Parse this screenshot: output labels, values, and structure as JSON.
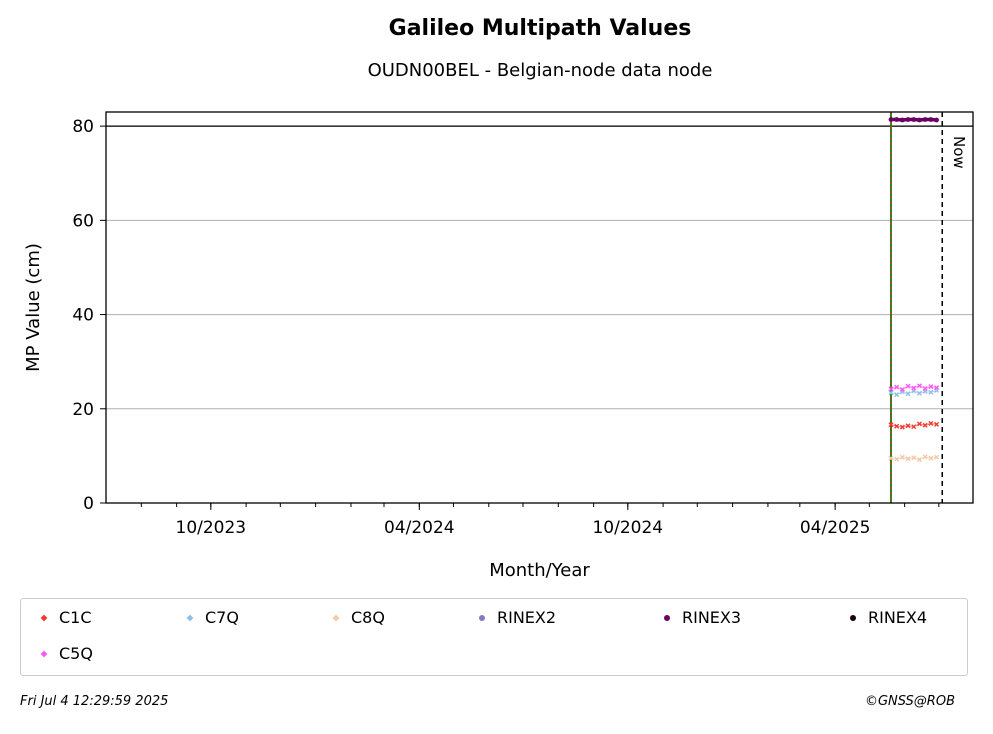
{
  "header": {
    "title": "Galileo Multipath Values",
    "subtitle": "OUDN00BEL - Belgian-node data node"
  },
  "footer": {
    "timestamp": "Fri Jul  4 12:29:59 2025",
    "copyright": "©GNSS@ROB"
  },
  "chart_data": {
    "type": "scatter",
    "title": "Galileo Multipath Values",
    "subtitle": "OUDN00BEL - Belgian-node data node",
    "xlabel": "Month/Year",
    "ylabel": "MP Value (cm)",
    "xlim": [
      "2023-07-01",
      "2025-07-31"
    ],
    "ylim": [
      0,
      83
    ],
    "yticks": [
      0,
      20,
      40,
      60,
      80
    ],
    "xticks": [
      {
        "date": "2023-10-01",
        "label": "10/2023"
      },
      {
        "date": "2024-04-01",
        "label": "04/2024"
      },
      {
        "date": "2024-10-01",
        "label": "10/2024"
      },
      {
        "date": "2025-04-01",
        "label": "04/2025"
      }
    ],
    "grid": "horizontal",
    "reference_line": {
      "y": 80
    },
    "vertical_lines": [
      {
        "date": "2025-05-20",
        "colors": [
          "#1a8a1a",
          "#e0301e"
        ],
        "style": "dotted"
      },
      {
        "date": "2025-07-04",
        "label": "Now",
        "color": "#000000",
        "style": "dashed"
      }
    ],
    "series": [
      {
        "name": "C1C",
        "color": "#f0392b",
        "marker": "x",
        "x": [
          "2025-05-20",
          "2025-05-25",
          "2025-05-30",
          "2025-06-04",
          "2025-06-09",
          "2025-06-14",
          "2025-06-19",
          "2025-06-24",
          "2025-06-29"
        ],
        "y": [
          16.6,
          16.3,
          16.1,
          16.4,
          16.2,
          16.8,
          16.5,
          16.9,
          16.7
        ]
      },
      {
        "name": "C7Q",
        "color": "#8fbfe6",
        "marker": "x",
        "x": [
          "2025-05-20",
          "2025-05-25",
          "2025-05-30",
          "2025-06-04",
          "2025-06-09",
          "2025-06-14",
          "2025-06-19",
          "2025-06-24",
          "2025-06-29"
        ],
        "y": [
          23.4,
          23.0,
          23.6,
          23.2,
          23.8,
          23.3,
          23.7,
          23.5,
          23.9
        ]
      },
      {
        "name": "C8Q",
        "color": "#f5c8a6",
        "marker": "x",
        "x": [
          "2025-05-20",
          "2025-05-25",
          "2025-05-30",
          "2025-06-04",
          "2025-06-09",
          "2025-06-14",
          "2025-06-19",
          "2025-06-24",
          "2025-06-29"
        ],
        "y": [
          9.5,
          9.3,
          9.7,
          9.4,
          9.6,
          9.2,
          9.8,
          9.5,
          9.7
        ]
      },
      {
        "name": "RINEX2",
        "color": "#8878c0",
        "marker": "o",
        "x": [],
        "y": []
      },
      {
        "name": "RINEX3",
        "color": "#6b0064",
        "marker": "o",
        "x": [
          "2025-05-20",
          "2025-05-25",
          "2025-05-30",
          "2025-06-04",
          "2025-06-09",
          "2025-06-14",
          "2025-06-19",
          "2025-06-24",
          "2025-06-29"
        ],
        "y": [
          81.4,
          81.4,
          81.3,
          81.4,
          81.4,
          81.3,
          81.4,
          81.4,
          81.3
        ]
      },
      {
        "name": "RINEX4",
        "color": "#1a0010",
        "marker": "o",
        "x": [],
        "y": []
      },
      {
        "name": "C5Q",
        "color": "#ff55ff",
        "marker": "x",
        "x": [
          "2025-05-20",
          "2025-05-25",
          "2025-05-30",
          "2025-06-04",
          "2025-06-09",
          "2025-06-14",
          "2025-06-19",
          "2025-06-24",
          "2025-06-29"
        ],
        "y": [
          24.2,
          24.6,
          24.1,
          24.8,
          24.4,
          24.9,
          24.3,
          24.7,
          24.5
        ]
      }
    ]
  }
}
